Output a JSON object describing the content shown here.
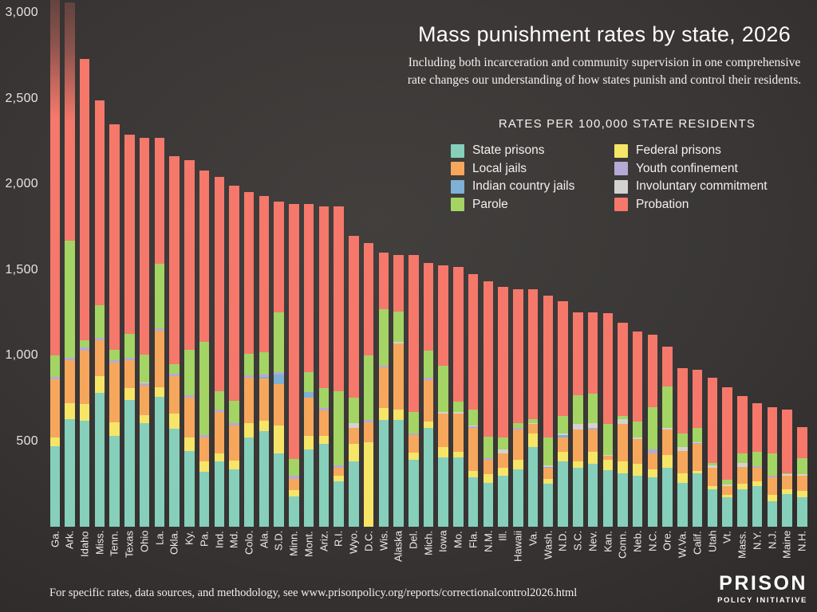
{
  "title": "Mass punishment rates by state, 2026",
  "subtitle": "Including both incarceration and community supervision in one comprehensive rate changes our understanding of how states punish and control their residents.",
  "footer": "For specific rates, data sources, and methodology, see www.prisonpolicy.org/reports/correctionalcontrol2026.html",
  "logo": {
    "line1": "PRISON",
    "line2": "POLICY INITIATIVE"
  },
  "legend": {
    "heading": "RATES PER 100,000 STATE RESIDENTS",
    "items": [
      {
        "label": "State prisons",
        "key": "state_prisons",
        "color": "#85CFBB"
      },
      {
        "label": "Local jails",
        "key": "local_jails",
        "color": "#F6A75C"
      },
      {
        "label": "Indian country jails",
        "key": "indian_country_jails",
        "color": "#7FB0D5"
      },
      {
        "label": "Parole",
        "key": "parole",
        "color": "#A4D464"
      },
      {
        "label": "Federal prisons",
        "key": "federal_prisons",
        "color": "#F6E566"
      },
      {
        "label": "Youth confinement",
        "key": "youth_confinement",
        "color": "#B4AAD5"
      },
      {
        "label": "Involuntary commitment",
        "key": "involuntary_commitment",
        "color": "#D4D2D0"
      },
      {
        "label": "Probation",
        "key": "probation",
        "color": "#F5786B"
      }
    ]
  },
  "chart_data": {
    "type": "bar",
    "stacked": true,
    "grid": false,
    "legend_position": "top-right",
    "ylim": [
      0,
      3000
    ],
    "y_ticks": [
      500,
      1000,
      1500,
      2000,
      2500,
      3000
    ],
    "y_tick_labels": [
      "500",
      "1,000",
      "1,500",
      "2,000",
      "2,500",
      "3,000"
    ],
    "x_tick_rotation": -90,
    "bars_exceeding_axis": [
      "Ga.",
      "Ark."
    ],
    "stack_order": [
      "state_prisons",
      "federal_prisons",
      "local_jails",
      "indian_country_jails",
      "youth_confinement",
      "involuntary_commitment",
      "parole",
      "probation"
    ],
    "categories": [
      "Ga.",
      "Ark.",
      "Idaho",
      "Miss.",
      "Tenn.",
      "Texas",
      "Ohio",
      "La.",
      "Okla.",
      "Ky.",
      "Pa.",
      "Ind.",
      "Md.",
      "Colo.",
      "Ala.",
      "S.D.",
      "Minn.",
      "Mont.",
      "Ariz.",
      "R.I.",
      "Wyo.",
      "D.C.",
      "Wis.",
      "Alaska",
      "Del.",
      "Mich.",
      "Iowa",
      "Mo.",
      "Fla.",
      "N.M.",
      "Ill.",
      "Hawaii",
      "Va.",
      "Wash.",
      "N.D.",
      "S.C.",
      "Nev.",
      "Kan.",
      "Conn.",
      "Neb.",
      "N.C.",
      "Ore.",
      "W.Va.",
      "Calif.",
      "Utah",
      "Vt.",
      "Mass.",
      "N.Y.",
      "N.J.",
      "Maine",
      "N.H."
    ],
    "series": [
      {
        "name": "State prisons",
        "key": "state_prisons",
        "color": "#85CFBB",
        "values": [
          470,
          630,
          620,
          780,
          530,
          740,
          605,
          760,
          570,
          444,
          320,
          380,
          337,
          523,
          560,
          426,
          178,
          452,
          483,
          267,
          383,
          0,
          622,
          625,
          393,
          579,
          406,
          406,
          290,
          258,
          297,
          336,
          467,
          250,
          382,
          343,
          366,
          328,
          313,
          297,
          290,
          343,
          258,
          310,
          220,
          173,
          220,
          235,
          150,
          192,
          173
        ]
      },
      {
        "name": "Federal prisons",
        "key": "federal_prisons",
        "color": "#F6E566",
        "values": [
          50,
          90,
          95,
          100,
          78,
          70,
          46,
          55,
          92,
          78,
          63,
          47,
          47,
          84,
          61,
          166,
          34,
          77,
          46,
          30,
          100,
          494,
          70,
          60,
          42,
          37,
          60,
          31,
          38,
          47,
          46,
          54,
          79,
          30,
          55,
          39,
          71,
          62,
          69,
          69,
          46,
          78,
          56,
          16,
          19,
          12,
          30,
          28,
          38,
          28,
          38
        ]
      },
      {
        "name": "Local jails",
        "key": "local_jails",
        "color": "#F6A75C",
        "values": [
          340,
          250,
          315,
          210,
          348,
          160,
          172,
          328,
          215,
          232,
          139,
          241,
          209,
          265,
          242,
          240,
          69,
          225,
          148,
          46,
          93,
          116,
          238,
          384,
          98,
          242,
          194,
          225,
          248,
          85,
          86,
          179,
          53,
          63,
          85,
          187,
          132,
          23,
          217,
          148,
          93,
          148,
          130,
          156,
          104,
          50,
          97,
          80,
          102,
          80,
          86
        ]
      },
      {
        "name": "Indian country jails",
        "key": "indian_country_jails",
        "color": "#7FB0D5",
        "values": [
          0,
          0,
          0,
          0,
          0,
          0,
          0,
          0,
          0,
          0,
          0,
          0,
          0,
          0,
          10,
          58,
          0,
          30,
          0,
          0,
          0,
          0,
          0,
          0,
          0,
          0,
          0,
          0,
          0,
          0,
          0,
          0,
          0,
          8,
          15,
          0,
          0,
          0,
          0,
          0,
          0,
          0,
          0,
          0,
          0,
          0,
          0,
          0,
          0,
          0,
          0
        ]
      },
      {
        "name": "Youth confinement",
        "key": "youth_confinement",
        "color": "#B4AAD5",
        "values": [
          15,
          15,
          15,
          12,
          14,
          15,
          15,
          14,
          14,
          15,
          15,
          15,
          12,
          14,
          14,
          12,
          16,
          0,
          15,
          16,
          0,
          15,
          10,
          0,
          12,
          14,
          0,
          0,
          12,
          12,
          0,
          7,
          0,
          0,
          0,
          0,
          10,
          0,
          0,
          0,
          23,
          0,
          0,
          5,
          0,
          0,
          0,
          9,
          7,
          0,
          0
        ]
      },
      {
        "name": "Involuntary commitment",
        "key": "involuntary_commitment",
        "color": "#D4D2D0",
        "values": [
          0,
          0,
          0,
          0,
          0,
          0,
          5,
          0,
          0,
          0,
          0,
          0,
          0,
          0,
          0,
          0,
          0,
          0,
          0,
          0,
          31,
          0,
          0,
          8,
          0,
          0,
          8,
          10,
          4,
          0,
          23,
          0,
          6,
          6,
          9,
          29,
          28,
          7,
          31,
          8,
          0,
          7,
          23,
          5,
          17,
          10,
          27,
          0,
          0,
          7,
          8
        ]
      },
      {
        "name": "Parole",
        "key": "parole",
        "color": "#A4D464",
        "values": [
          125,
          685,
          45,
          190,
          65,
          142,
          160,
          380,
          56,
          265,
          540,
          110,
          132,
          125,
          130,
          348,
          100,
          117,
          116,
          434,
          147,
          375,
          330,
          181,
          127,
          158,
          272,
          60,
          93,
          123,
          70,
          31,
          25,
          165,
          99,
          171,
          171,
          178,
          15,
          93,
          248,
          241,
          79,
          85,
          14,
          30,
          55,
          85,
          132,
          7,
          93
        ]
      },
      {
        "name": "Probation",
        "key": "probation",
        "color": "#F5786B",
        "values": [
          2100,
          1390,
          1640,
          1198,
          1315,
          1163,
          1267,
          733,
          1218,
          1106,
          1003,
          1247,
          1253,
          944,
          913,
          650,
          1488,
          984,
          1062,
          1077,
          946,
          655,
          330,
          327,
          913,
          510,
          585,
          783,
          790,
          910,
          878,
          778,
          755,
          828,
          670,
          481,
          472,
          647,
          545,
          525,
          420,
          233,
          379,
          341,
          497,
          541,
          333,
          286,
          271,
          371,
          185
        ]
      }
    ]
  }
}
